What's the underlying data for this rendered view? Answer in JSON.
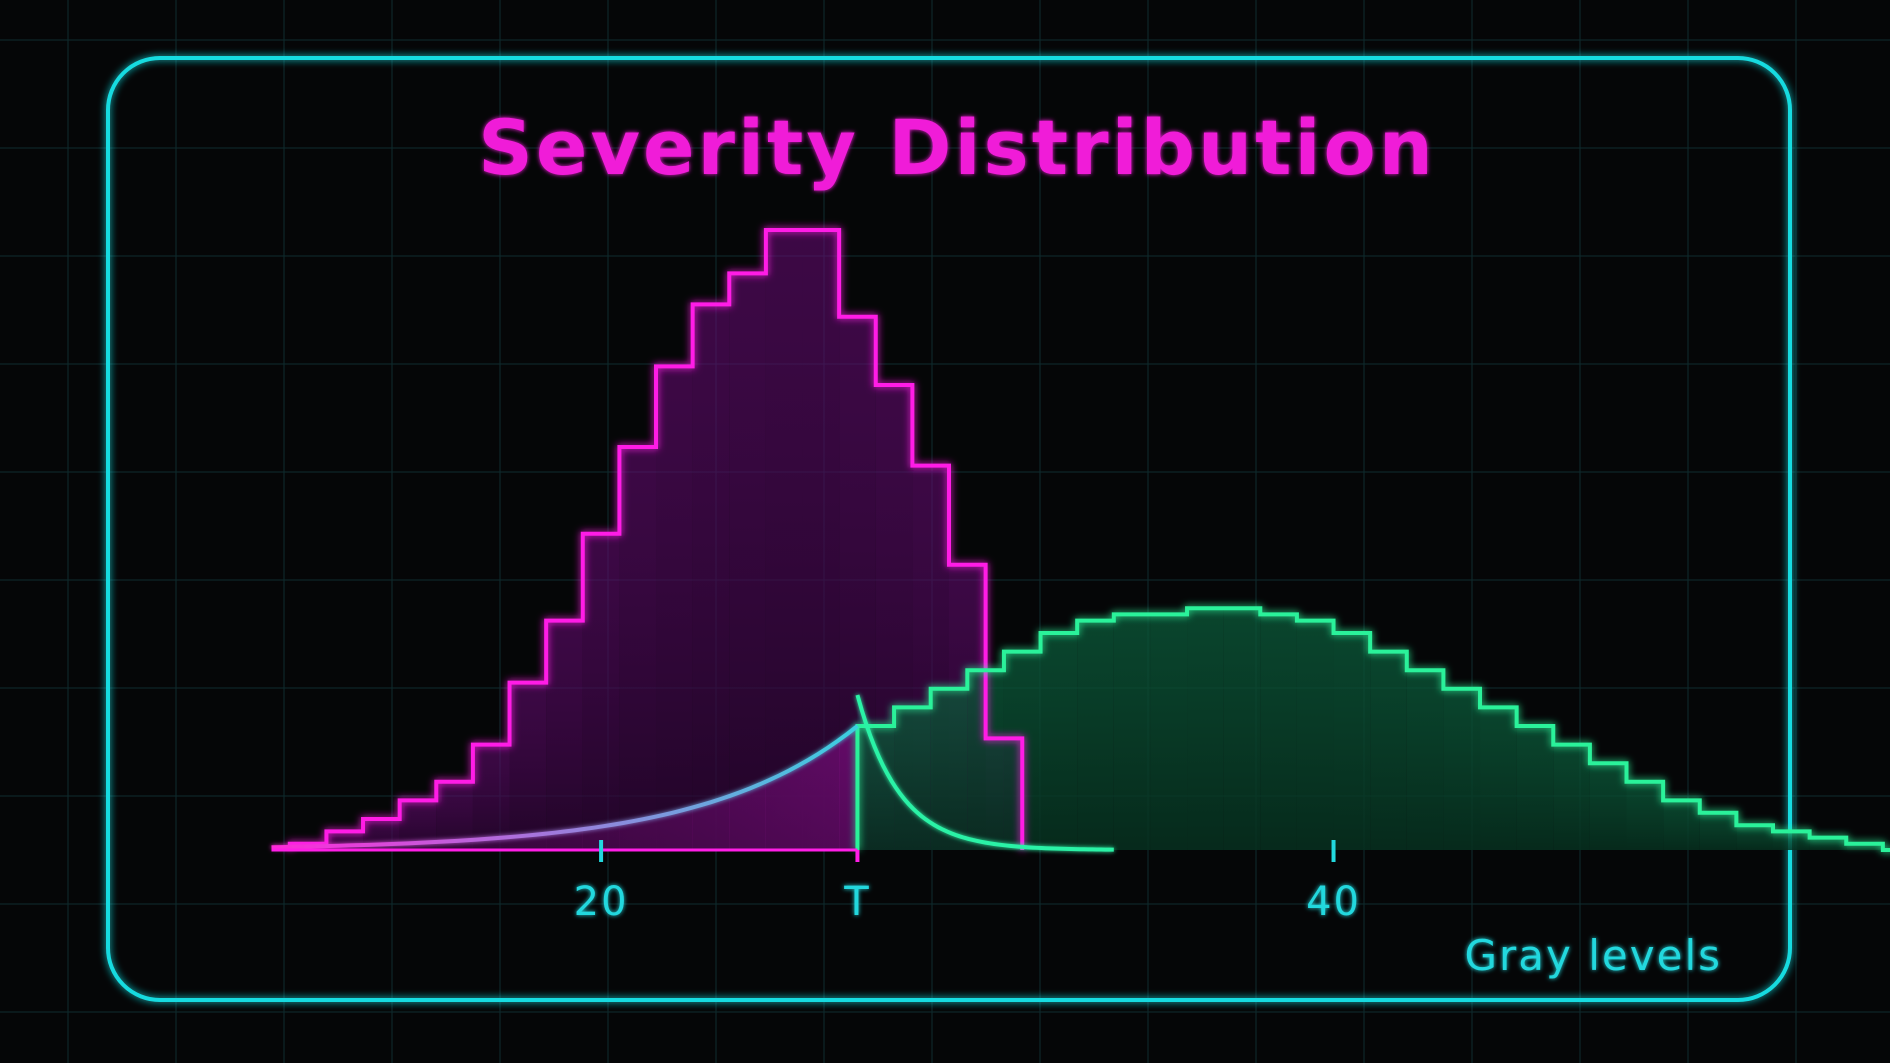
{
  "chart_data": {
    "type": "bar",
    "title": "Severity Distribution",
    "xlabel": "Gray levels",
    "ylabel": "",
    "xlim": [
      7,
      52
    ],
    "ylim": [
      0,
      100
    ],
    "grid": true,
    "x_ticks": [
      {
        "value": 20,
        "label": "20"
      },
      {
        "value": 27,
        "label": "T"
      },
      {
        "value": 40,
        "label": "40"
      }
    ],
    "threshold": {
      "value": 27,
      "label": "T"
    },
    "series": [
      {
        "color": "#ff1ee6",
        "bin_start": 11.5,
        "bin_width": 1,
        "values": [
          1,
          3,
          5,
          8,
          11,
          17,
          27,
          37,
          51,
          65,
          78,
          88,
          93,
          100,
          100,
          86,
          75,
          62,
          46,
          18
        ]
      },
      {
        "color": "#2cf29a",
        "bin_start": 27,
        "bin_width": 1,
        "values": [
          20,
          23,
          26,
          29,
          32,
          35,
          37,
          38,
          38,
          39,
          39,
          38,
          37,
          35,
          32,
          29,
          26,
          23,
          20,
          17,
          14,
          11,
          8,
          6,
          4,
          3,
          2,
          1,
          0
        ]
      }
    ]
  },
  "colors": {
    "frame": "#18dbe0",
    "title": "#f01cd8",
    "axis": "#22d8de",
    "background": "#050607"
  }
}
